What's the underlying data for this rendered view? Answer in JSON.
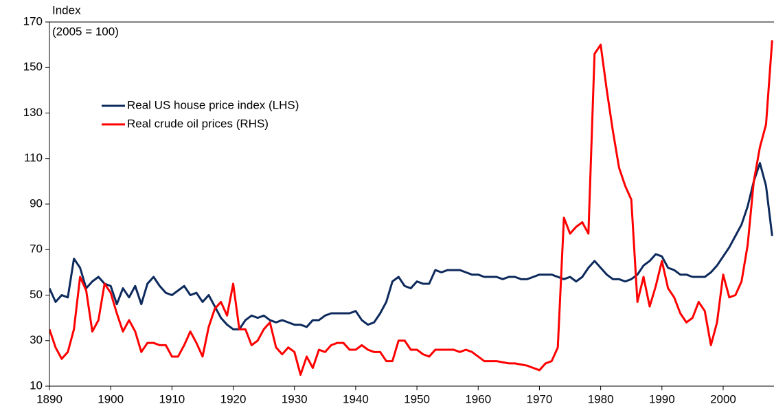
{
  "chart_data": {
    "type": "line",
    "axis_title": "Index",
    "annotation": "(2005 = 100)",
    "x": [
      1890,
      1891,
      1892,
      1893,
      1894,
      1895,
      1896,
      1897,
      1898,
      1899,
      1900,
      1901,
      1902,
      1903,
      1904,
      1905,
      1906,
      1907,
      1908,
      1909,
      1910,
      1911,
      1912,
      1913,
      1914,
      1915,
      1916,
      1917,
      1918,
      1919,
      1920,
      1921,
      1922,
      1923,
      1924,
      1925,
      1926,
      1927,
      1928,
      1929,
      1930,
      1931,
      1932,
      1933,
      1934,
      1935,
      1936,
      1937,
      1938,
      1939,
      1940,
      1941,
      1942,
      1943,
      1944,
      1945,
      1946,
      1947,
      1948,
      1949,
      1950,
      1951,
      1952,
      1953,
      1954,
      1955,
      1956,
      1957,
      1958,
      1959,
      1960,
      1961,
      1962,
      1963,
      1964,
      1965,
      1966,
      1967,
      1968,
      1969,
      1970,
      1971,
      1972,
      1973,
      1974,
      1975,
      1976,
      1977,
      1978,
      1979,
      1980,
      1981,
      1982,
      1983,
      1984,
      1985,
      1986,
      1987,
      1988,
      1989,
      1990,
      1991,
      1992,
      1993,
      1994,
      1995,
      1996,
      1997,
      1998,
      1999,
      2000,
      2001,
      2002,
      2003,
      2004,
      2005,
      2006,
      2007,
      2008
    ],
    "series": [
      {
        "name": "Real US house price index (LHS)",
        "color": "#0d2a5c",
        "values": [
          53,
          47,
          50,
          49,
          66,
          62,
          53,
          56,
          58,
          55,
          54,
          46,
          53,
          49,
          54,
          46,
          55,
          58,
          54,
          51,
          50,
          52,
          54,
          50,
          51,
          47,
          50,
          45,
          40,
          37,
          35,
          35,
          39,
          41,
          40,
          41,
          39,
          38,
          39,
          38,
          37,
          37,
          36,
          39,
          39,
          41,
          42,
          42,
          42,
          42,
          43,
          39,
          37,
          38,
          42,
          47,
          56,
          58,
          54,
          53,
          56,
          55,
          55,
          61,
          60,
          61,
          61,
          61,
          60,
          59,
          59,
          58,
          58,
          58,
          57,
          58,
          58,
          57,
          57,
          58,
          59,
          59,
          59,
          58,
          57,
          58,
          56,
          58,
          62,
          65,
          62,
          59,
          57,
          57,
          56,
          57,
          59,
          63,
          65,
          68,
          67,
          62,
          61,
          59,
          59,
          58,
          58,
          58,
          60,
          63,
          67,
          71,
          76,
          81,
          89,
          100,
          108,
          98,
          76
        ]
      },
      {
        "name": "Real crude oil prices (RHS)",
        "color": "#ff0000",
        "values": [
          35,
          27,
          22,
          25,
          35,
          58,
          52,
          34,
          39,
          55,
          51,
          42,
          34,
          39,
          34,
          25,
          29,
          29,
          28,
          28,
          23,
          23,
          28,
          34,
          29,
          23,
          36,
          44,
          47,
          41,
          55,
          35,
          35,
          28,
          30,
          35,
          38,
          27,
          24,
          27,
          25,
          15,
          23,
          18,
          26,
          25,
          28,
          29,
          29,
          26,
          26,
          28,
          26,
          25,
          25,
          21,
          21,
          30,
          30,
          26,
          26,
          24,
          23,
          26,
          26,
          26,
          26,
          25,
          26,
          25,
          23,
          21,
          21,
          21,
          20.5,
          20,
          20,
          19.5,
          19,
          18,
          17,
          20,
          21,
          27,
          84,
          77,
          80,
          82,
          77,
          156,
          160,
          140,
          122,
          106,
          98,
          92,
          47,
          58,
          45,
          54,
          65,
          53,
          49,
          42,
          38,
          40,
          47,
          43,
          28,
          38,
          59,
          49,
          50,
          56,
          72,
          100,
          115,
          125,
          162
        ]
      }
    ],
    "xlim": [
      1890,
      2008.3
    ],
    "xticks": [
      1890,
      1900,
      1910,
      1920,
      1930,
      1940,
      1950,
      1960,
      1970,
      1980,
      1990,
      2000
    ],
    "ylim": [
      10,
      170
    ],
    "yticks": [
      10,
      30,
      50,
      70,
      90,
      110,
      130,
      150,
      170
    ]
  }
}
